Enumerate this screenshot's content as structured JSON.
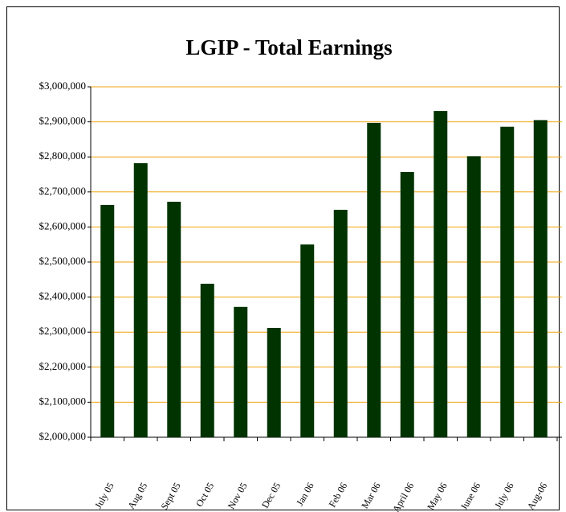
{
  "chart_data": {
    "type": "bar",
    "title": "LGIP - Total Earnings",
    "categories": [
      "July 05",
      "Aug 05",
      "Sept 05",
      "Oct 05",
      "Nov 05",
      "Dec 05",
      "Jan 06",
      "Feb 06",
      "Mar 06",
      "April 06",
      "May 06",
      "June 06",
      "July 06",
      "Aug-06"
    ],
    "values": [
      2663000,
      2782000,
      2672000,
      2438000,
      2372000,
      2312000,
      2550000,
      2649000,
      2897000,
      2757000,
      2931000,
      2802000,
      2886000,
      2905000
    ],
    "color": "#003300",
    "ylim": [
      2000000,
      3000000
    ],
    "yticks": [
      {
        "value": 2000000,
        "label": "$2,000,000"
      },
      {
        "value": 2100000,
        "label": "$2,100,000"
      },
      {
        "value": 2200000,
        "label": "$2,200,000"
      },
      {
        "value": 2300000,
        "label": "$2,300,000"
      },
      {
        "value": 2400000,
        "label": "$2,400,000"
      },
      {
        "value": 2500000,
        "label": "$2,500,000"
      },
      {
        "value": 2600000,
        "label": "$2,600,000"
      },
      {
        "value": 2700000,
        "label": "$2,700,000"
      },
      {
        "value": 2800000,
        "label": "$2,800,000"
      },
      {
        "value": 2900000,
        "label": "$2,900,000"
      },
      {
        "value": 3000000,
        "label": "$3,000,000"
      }
    ],
    "grid": true
  }
}
